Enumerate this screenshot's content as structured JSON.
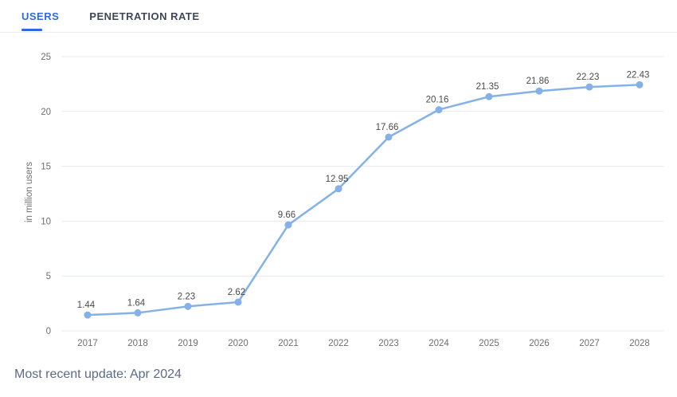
{
  "tabs": [
    {
      "label": "USERS",
      "active": true
    },
    {
      "label": "PENETRATION RATE",
      "active": false
    }
  ],
  "footer": {
    "update_note": "Most recent update: Apr 2024"
  },
  "colors": {
    "accent_blue": "#2c6be4",
    "series_blue": "#84b1e7",
    "gridline": "#e6eaf0",
    "axis_text": "#6f6f6f",
    "data_label_text": "#4a4a4a",
    "footer_text": "#5c6b89",
    "inactive_tab_text": "#3d4757"
  },
  "chart_data": {
    "type": "line",
    "categories": [
      "2017",
      "2018",
      "2019",
      "2020",
      "2021",
      "2022",
      "2023",
      "2024",
      "2025",
      "2026",
      "2027",
      "2028"
    ],
    "values": [
      1.44,
      1.64,
      2.23,
      2.62,
      9.66,
      12.95,
      17.66,
      20.16,
      21.35,
      21.86,
      22.23,
      22.43
    ],
    "title": "",
    "xlabel": "",
    "ylabel": "in million users",
    "ylim": [
      0,
      25
    ],
    "yticks": [
      0,
      5,
      10,
      15,
      20,
      25
    ],
    "grid": true,
    "legend": "none",
    "marker": "circle",
    "data_labels_shown": true
  }
}
